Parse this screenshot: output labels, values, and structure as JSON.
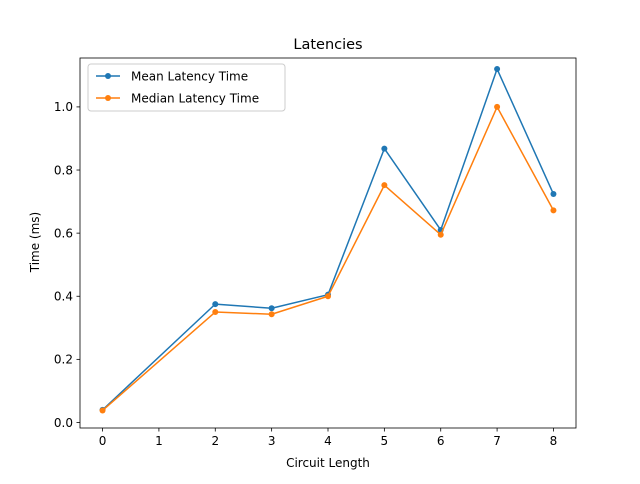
{
  "chart_data": {
    "type": "line",
    "title": "Latencies",
    "xlabel": "Circuit Length",
    "ylabel": "Time (ms)",
    "xlim": [
      -0.4,
      8.4
    ],
    "ylim": [
      -0.0175,
      1.155
    ],
    "xticks": [
      0,
      1,
      2,
      3,
      4,
      5,
      6,
      7,
      8
    ],
    "xtick_labels": [
      "0",
      "1",
      "2",
      "3",
      "4",
      "5",
      "6",
      "7",
      "8"
    ],
    "yticks": [
      0.0,
      0.2,
      0.4,
      0.6,
      0.8,
      1.0
    ],
    "ytick_labels": [
      "0.0",
      "0.2",
      "0.4",
      "0.6",
      "0.8",
      "1.0"
    ],
    "grid": false,
    "legend_position": "upper-left",
    "x": [
      0,
      2,
      3,
      4,
      5,
      6,
      7,
      8
    ],
    "series": [
      {
        "name": "Mean Latency Time",
        "color": "#1f77b4",
        "values": [
          0.04,
          0.375,
          0.362,
          0.405,
          0.868,
          0.61,
          1.12,
          0.724
        ]
      },
      {
        "name": "Median Latency Time",
        "color": "#ff7f0e",
        "values": [
          0.038,
          0.35,
          0.343,
          0.4,
          0.752,
          0.595,
          1.0,
          0.672
        ]
      }
    ]
  }
}
